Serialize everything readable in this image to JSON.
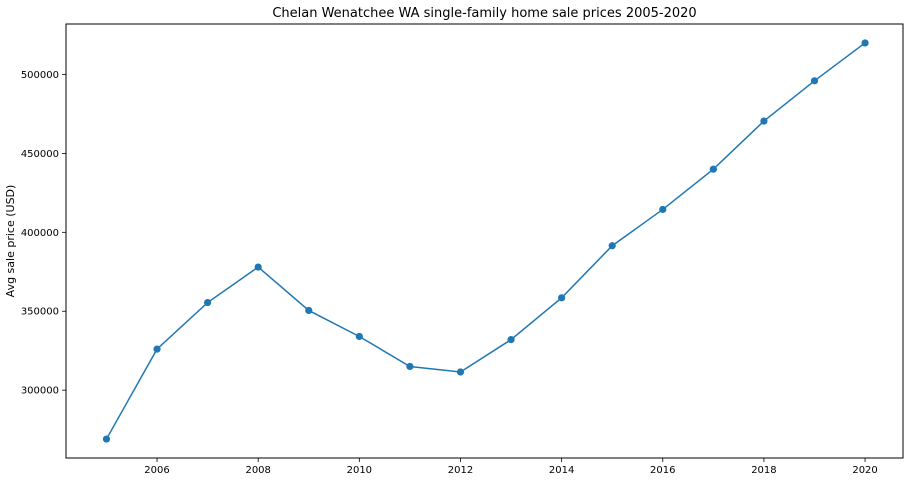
{
  "chart_data": {
    "type": "line",
    "title": "Chelan Wenatchee WA single-family home sale prices 2005-2020",
    "xlabel": "",
    "ylabel": "Avg sale price (USD)",
    "x": [
      2005,
      2006,
      2007,
      2008,
      2009,
      2010,
      2011,
      2012,
      2013,
      2014,
      2015,
      2016,
      2017,
      2018,
      2019,
      2020
    ],
    "series": [
      {
        "values": [
          269000,
          326000,
          355500,
          378000,
          350500,
          334000,
          315000,
          311500,
          332000,
          358500,
          391500,
          414500,
          440000,
          470500,
          496000,
          520000
        ],
        "color": "#1f77b4"
      }
    ],
    "xlim": [
      2004.2,
      2020.75
    ],
    "ylim": [
      257000,
      532000
    ],
    "xticks": [
      "2006",
      "2008",
      "2010",
      "2012",
      "2014",
      "2016",
      "2018",
      "2020"
    ],
    "yticks": [
      "300000",
      "350000",
      "400000",
      "450000",
      "500000"
    ],
    "grid": false,
    "legend": "none"
  }
}
